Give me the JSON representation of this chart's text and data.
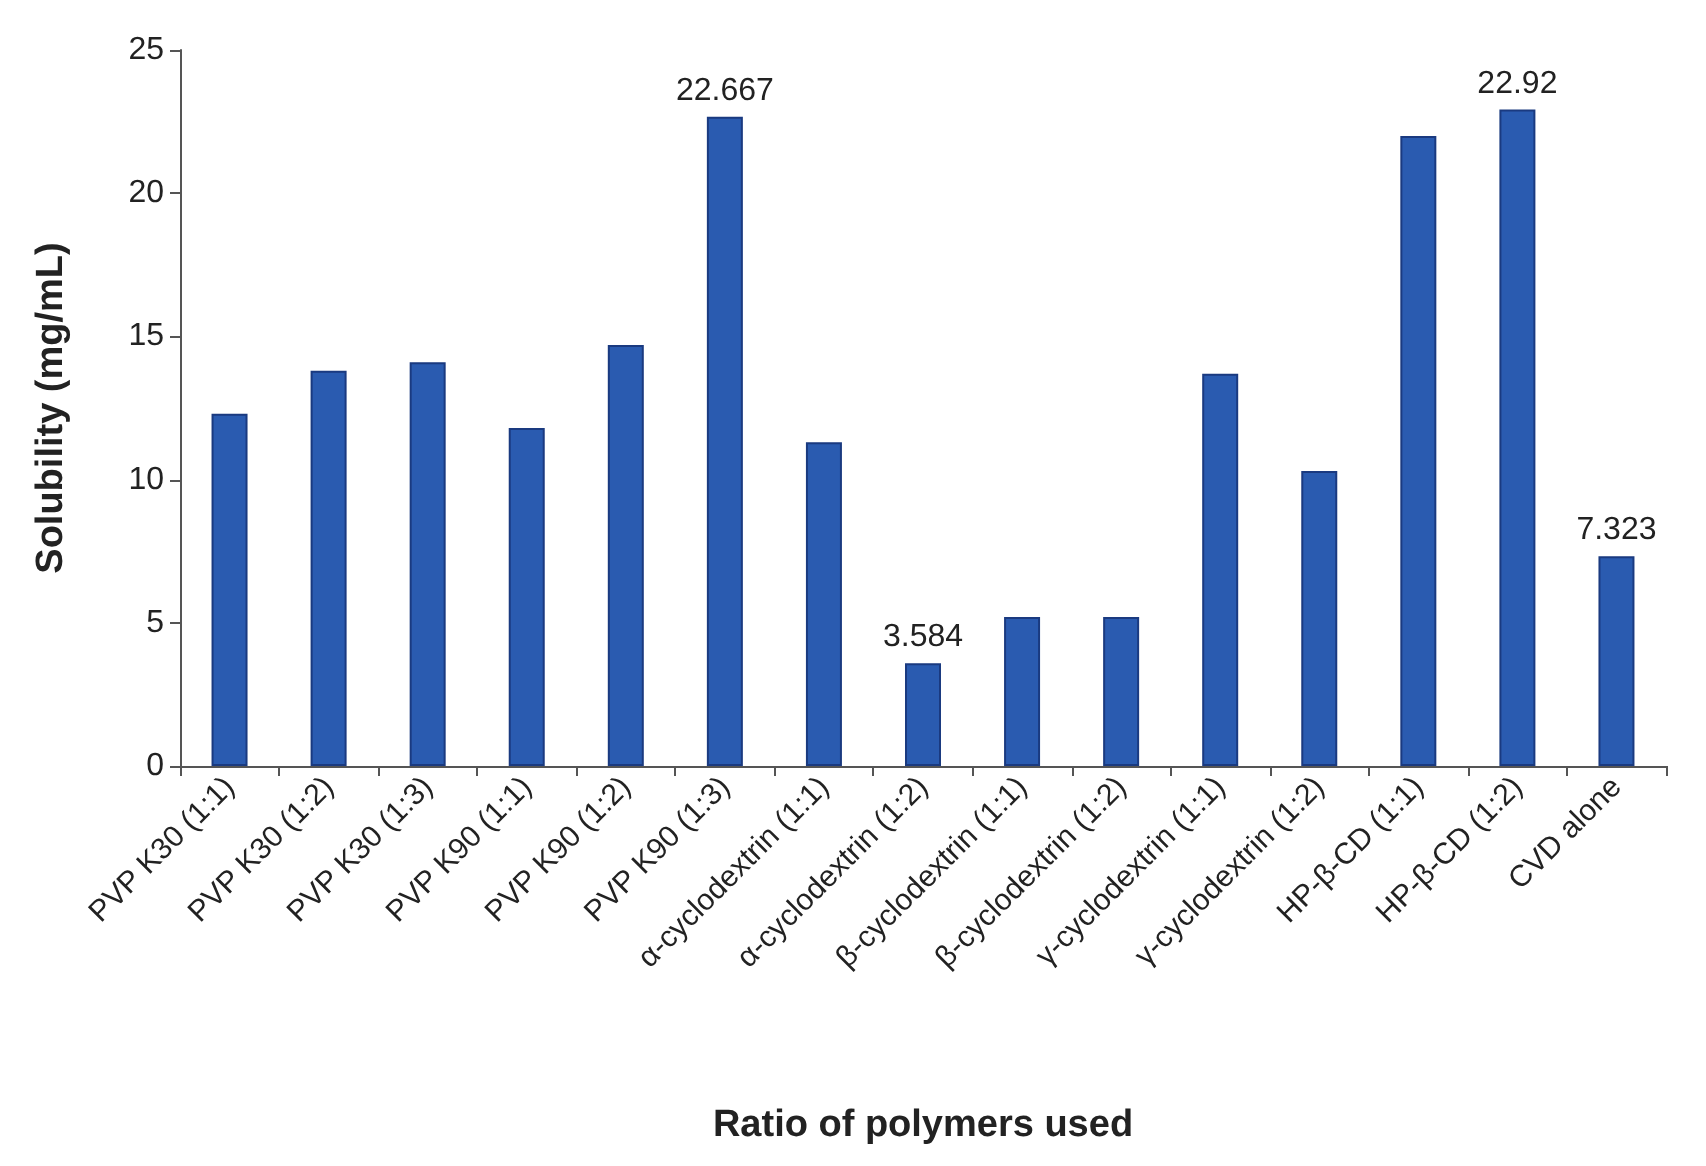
{
  "chart_data": {
    "type": "bar",
    "xlabel": "Ratio of polymers used",
    "ylabel": "Solubility (mg/mL)",
    "categories": [
      "PVP K30 (1:1)",
      "PVP K30 (1:2)",
      "PVP K30 (1:3)",
      "PVP K90 (1:1)",
      "PVP K90 (1:2)",
      "PVP K90 (1:3)",
      "α-cyclodextrin (1:1)",
      "α-cyclodextrin (1:2)",
      "β-cyclodextrin (1:1)",
      "β-cyclodextrin (1:2)",
      "γ-cyclodextrin (1:1)",
      "γ-cyclodextrin (1:2)",
      "HP-β-CD (1:1)",
      "HP-β-CD (1:2)",
      "CVD alone"
    ],
    "values": [
      12.3,
      13.8,
      14.1,
      11.8,
      14.7,
      22.667,
      11.3,
      3.584,
      5.2,
      5.2,
      13.7,
      10.3,
      22.0,
      22.92,
      7.323
    ],
    "value_labels": [
      null,
      null,
      null,
      null,
      null,
      "22.667",
      null,
      "3.584",
      null,
      null,
      null,
      null,
      null,
      "22.92",
      "7.323"
    ],
    "color": "#2a5bb0",
    "ylim": [
      0,
      25
    ],
    "yticks": [
      0,
      5,
      10,
      15,
      20,
      25
    ]
  }
}
